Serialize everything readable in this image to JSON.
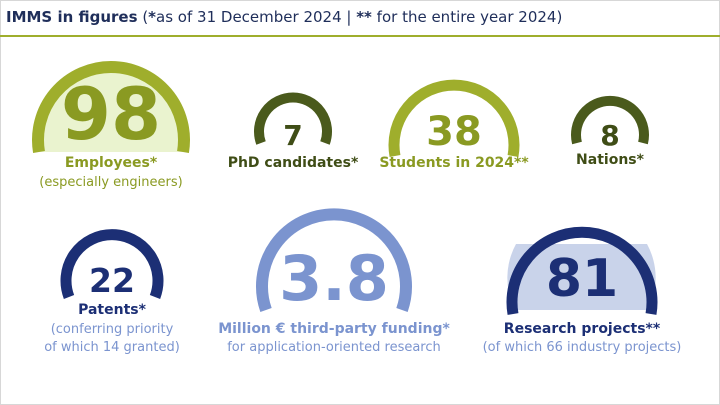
{
  "header": {
    "title_bold": "IMMS in figures",
    "note_open": " (",
    "star1": "*",
    "note1": "as of 31 December 2024 | ",
    "star2": "**",
    "note2": " for the entire year 2024)"
  },
  "colors": {
    "lime": "#9fae2c",
    "lime_fill": "#eaf3cf",
    "olive": "#4a5a1c",
    "navy": "#1c2f75",
    "periwinkle": "#7b94cf",
    "navy_fill": "#c9d3ea",
    "text_navy": "#1f2e5a"
  },
  "stats": {
    "employees": {
      "value": "98",
      "label": "Employees*",
      "note": "(especially engineers)"
    },
    "phd": {
      "value": "7",
      "label": "PhD candidates*"
    },
    "students": {
      "value": "38",
      "label": "Students in 2024**"
    },
    "nations": {
      "value": "8",
      "label": "Nations*"
    },
    "patents": {
      "value": "22",
      "label": "Patents*",
      "note1": "(conferring priority",
      "note2": "of which 14 granted)"
    },
    "funding": {
      "value": "3.8",
      "label": "Million € third-party funding*",
      "note": "for application-oriented research"
    },
    "projects": {
      "value": "81",
      "label": "Research projects**",
      "note": "(of which 66 industry projects)"
    }
  }
}
